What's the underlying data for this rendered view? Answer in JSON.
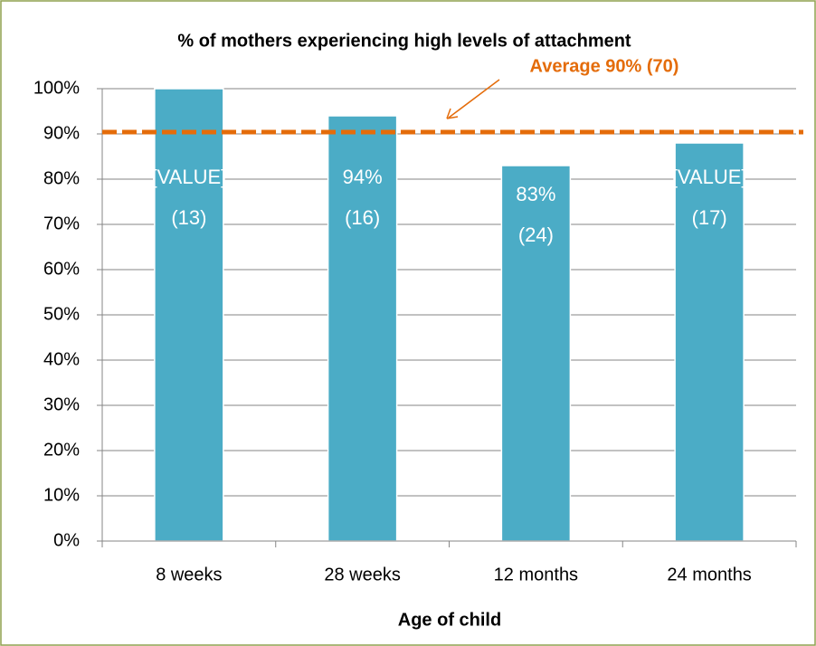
{
  "chart_data": {
    "type": "bar",
    "title": "% of mothers experiencing high levels of attachment",
    "x_label": "Age of child",
    "categories": [
      "8 weeks",
      "28 weeks",
      "12 months",
      "24 months"
    ],
    "values": [
      100,
      94,
      83,
      88
    ],
    "value_labels": [
      [
        "[VALUE]",
        "(13)"
      ],
      [
        "94%",
        "(16)"
      ],
      [
        "83%",
        "(24)"
      ],
      [
        "[VALUE]",
        "(17)"
      ]
    ],
    "color": "#4bacc6",
    "ylim": [
      0,
      100
    ],
    "yticks": [
      {
        "value": 0,
        "label": "0%"
      },
      {
        "value": 10,
        "label": "10%"
      },
      {
        "value": 20,
        "label": "20%"
      },
      {
        "value": 30,
        "label": "30%"
      },
      {
        "value": 40,
        "label": "40%"
      },
      {
        "value": 50,
        "label": "50%"
      },
      {
        "value": 60,
        "label": "60%"
      },
      {
        "value": 70,
        "label": "70%"
      },
      {
        "value": 80,
        "label": "80%"
      },
      {
        "value": 90,
        "label": "90%"
      },
      {
        "value": 100,
        "label": "100%"
      }
    ],
    "grid": true,
    "reference_line": {
      "value": 90.4,
      "label": "Average  90% (70)",
      "color": "#e46c0a"
    }
  }
}
